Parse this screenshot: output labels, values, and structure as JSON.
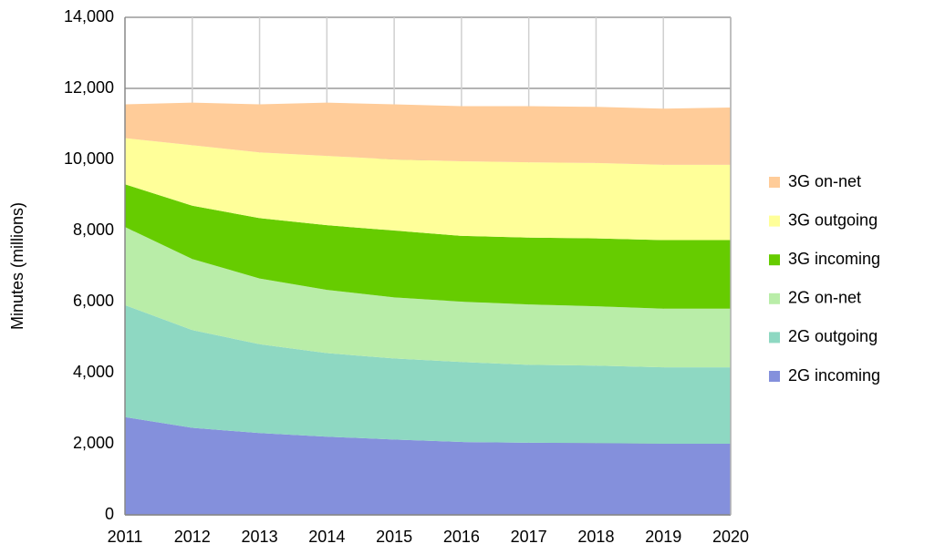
{
  "chart_data": {
    "type": "stacked_area",
    "y_label": "Minutes (millions)",
    "categories": [
      "2011",
      "2012",
      "2013",
      "2014",
      "2015",
      "2016",
      "2017",
      "2018",
      "2019",
      "2020"
    ],
    "series": [
      {
        "name": "2G incoming",
        "color": "#8490dc",
        "values": [
          2750,
          2450,
          2300,
          2200,
          2120,
          2050,
          2030,
          2020,
          2000,
          2000
        ]
      },
      {
        "name": "2G outgoing",
        "color": "#8ed8c2",
        "values": [
          3150,
          2750,
          2500,
          2350,
          2280,
          2250,
          2190,
          2180,
          2150,
          2150
        ]
      },
      {
        "name": "2G on-net",
        "color": "#b9eda8",
        "values": [
          2200,
          2000,
          1850,
          1780,
          1720,
          1700,
          1700,
          1670,
          1650,
          1650
        ]
      },
      {
        "name": "3G incoming",
        "color": "#66cc00",
        "values": [
          1200,
          1500,
          1700,
          1820,
          1880,
          1850,
          1880,
          1910,
          1930,
          1930
        ]
      },
      {
        "name": "3G outgoing",
        "color": "#ffff99",
        "values": [
          1300,
          1700,
          1850,
          1950,
          2000,
          2100,
          2120,
          2120,
          2120,
          2120
        ]
      },
      {
        "name": "3G on-net",
        "color": "#ffcc99",
        "values": [
          950,
          1200,
          1350,
          1500,
          1550,
          1550,
          1580,
          1580,
          1580,
          1610
        ]
      }
    ],
    "ylim": [
      0,
      14000
    ],
    "yticks": [
      0,
      {
        "value": 2000,
        "label": "2,000"
      },
      {
        "value": 4000,
        "label": "4,000"
      },
      {
        "value": 6000,
        "label": "6,000"
      },
      {
        "value": 8000,
        "label": "8,000"
      },
      {
        "value": 10000,
        "label": "10,000"
      },
      {
        "value": 12000,
        "label": "12,000"
      },
      {
        "value": 14000,
        "label": "14,000"
      }
    ],
    "grid": true,
    "legend": "right"
  }
}
